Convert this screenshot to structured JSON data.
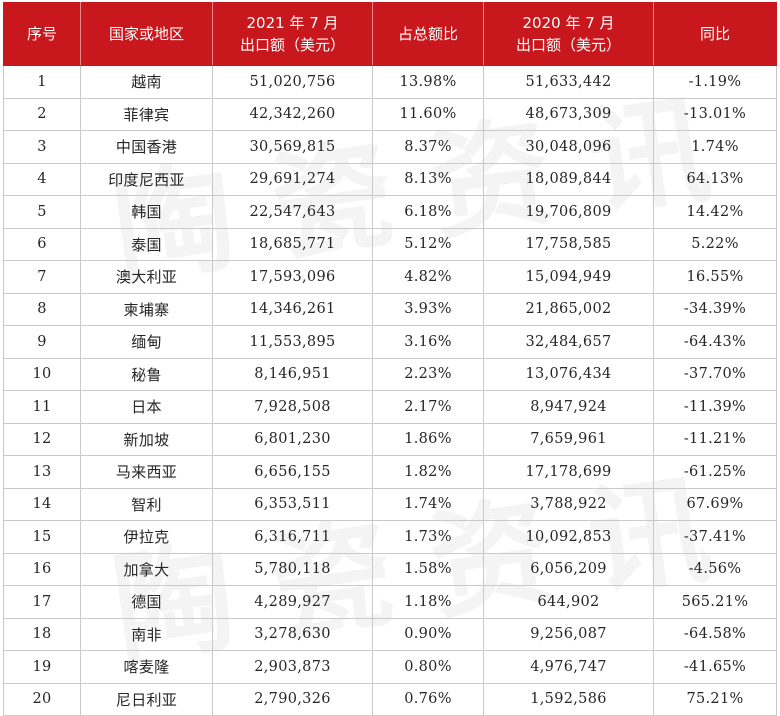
{
  "watermark": {
    "text": "陶瓷资讯"
  },
  "table": {
    "headers": [
      {
        "lines": [
          "序号"
        ]
      },
      {
        "lines": [
          "国家或地区"
        ]
      },
      {
        "lines": [
          "2021 年 7 月",
          "出口额（美元）"
        ]
      },
      {
        "lines": [
          "占总额比"
        ]
      },
      {
        "lines": [
          "2020 年 7 月",
          "出口额（美元）"
        ]
      },
      {
        "lines": [
          "同比"
        ]
      }
    ],
    "rows": [
      [
        "1",
        "越南",
        "51,020,756",
        "13.98%",
        "51,633,442",
        "-1.19%"
      ],
      [
        "2",
        "菲律宾",
        "42,342,260",
        "11.60%",
        "48,673,309",
        "-13.01%"
      ],
      [
        "3",
        "中国香港",
        "30,569,815",
        "8.37%",
        "30,048,096",
        "1.74%"
      ],
      [
        "4",
        "印度尼西亚",
        "29,691,274",
        "8.13%",
        "18,089,844",
        "64.13%"
      ],
      [
        "5",
        "韩国",
        "22,547,643",
        "6.18%",
        "19,706,809",
        "14.42%"
      ],
      [
        "6",
        "泰国",
        "18,685,771",
        "5.12%",
        "17,758,585",
        "5.22%"
      ],
      [
        "7",
        "澳大利亚",
        "17,593,096",
        "4.82%",
        "15,094,949",
        "16.55%"
      ],
      [
        "8",
        "柬埔寨",
        "14,346,261",
        "3.93%",
        "21,865,002",
        "-34.39%"
      ],
      [
        "9",
        "缅甸",
        "11,553,895",
        "3.16%",
        "32,484,657",
        "-64.43%"
      ],
      [
        "10",
        "秘鲁",
        "8,146,951",
        "2.23%",
        "13,076,434",
        "-37.70%"
      ],
      [
        "11",
        "日本",
        "7,928,508",
        "2.17%",
        "8,947,924",
        "-11.39%"
      ],
      [
        "12",
        "新加坡",
        "6,801,230",
        "1.86%",
        "7,659,961",
        "-11.21%"
      ],
      [
        "13",
        "马来西亚",
        "6,656,155",
        "1.82%",
        "17,178,699",
        "-61.25%"
      ],
      [
        "14",
        "智利",
        "6,353,511",
        "1.74%",
        "3,788,922",
        "67.69%"
      ],
      [
        "15",
        "伊拉克",
        "6,316,711",
        "1.73%",
        "10,092,853",
        "-37.41%"
      ],
      [
        "16",
        "加拿大",
        "5,780,118",
        "1.58%",
        "6,056,209",
        "-4.56%"
      ],
      [
        "17",
        "德国",
        "4,289,927",
        "1.18%",
        "644,902",
        "565.21%"
      ],
      [
        "18",
        "南非",
        "3,278,630",
        "0.90%",
        "9,256,087",
        "-64.58%"
      ],
      [
        "19",
        "喀麦隆",
        "2,903,873",
        "0.80%",
        "4,976,747",
        "-41.65%"
      ],
      [
        "20",
        "尼日利亚",
        "2,790,326",
        "0.76%",
        "1,592,586",
        "75.21%"
      ]
    ]
  },
  "colors": {
    "header_bg": "#c8171d",
    "header_text": "#ffffff",
    "grid": "#c9c9c9",
    "body_text": "#262626"
  }
}
